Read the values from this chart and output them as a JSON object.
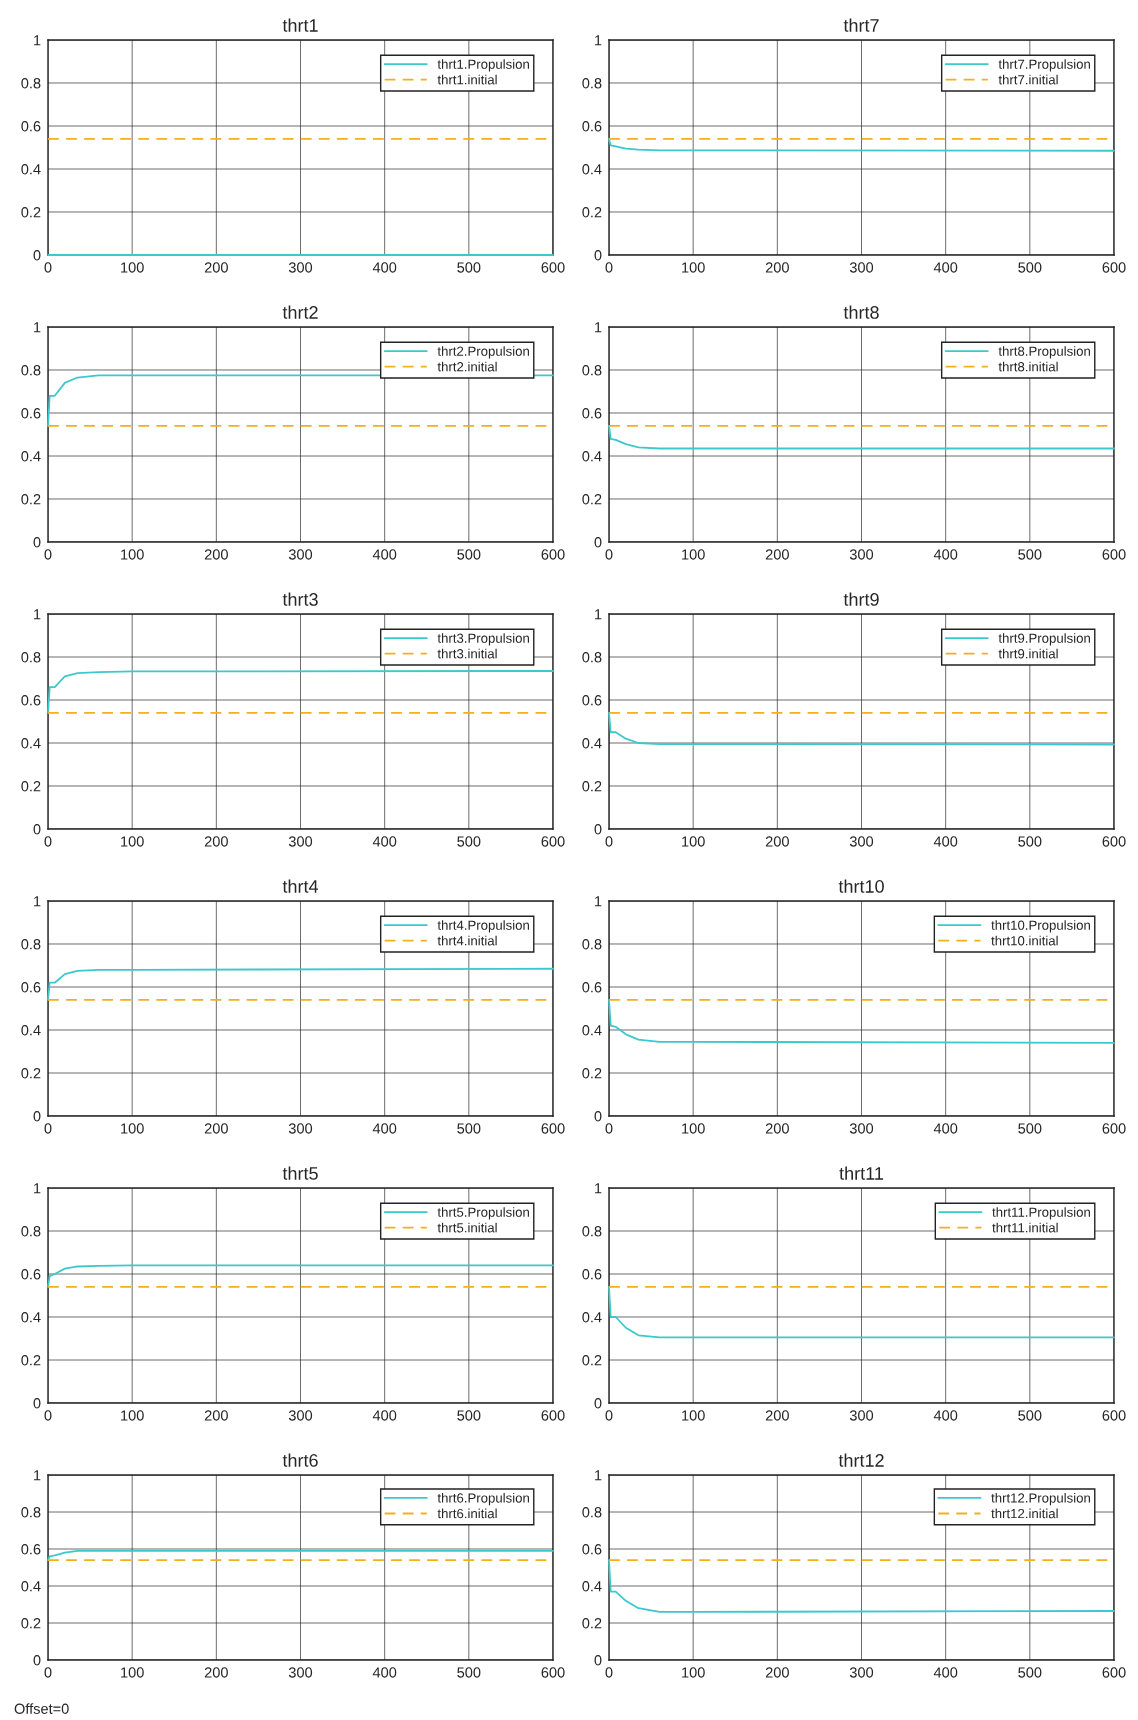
{
  "chart_data": [
    {
      "type": "line",
      "title": "thrt1",
      "xlim": [
        0,
        600
      ],
      "ylim": [
        0,
        1
      ],
      "xticks": [
        0,
        100,
        200,
        300,
        400,
        500,
        600
      ],
      "yticks": [
        0,
        0.2,
        0.4,
        0.6,
        0.8,
        1
      ],
      "grid": true,
      "legend": "top right",
      "series": [
        {
          "name": "thrt1.Propulsion",
          "color": "#3cc8cc",
          "line_style": "solid",
          "x": [
            0,
            600
          ],
          "values": [
            0,
            0
          ]
        },
        {
          "name": "thrt1.initial",
          "color": "#f2b01e",
          "line_style": "dashed",
          "x": [
            0,
            600
          ],
          "values": [
            0.54,
            0.54
          ]
        }
      ]
    },
    {
      "type": "line",
      "title": "thrt7",
      "xlim": [
        0,
        600
      ],
      "ylim": [
        0,
        1
      ],
      "xticks": [
        0,
        100,
        200,
        300,
        400,
        500,
        600
      ],
      "yticks": [
        0,
        0.2,
        0.4,
        0.6,
        0.8,
        1
      ],
      "grid": true,
      "legend": "top right",
      "series": [
        {
          "name": "thrt7.Propulsion",
          "color": "#3cc8cc",
          "line_style": "solid",
          "x": [
            0,
            2,
            8,
            20,
            35,
            60,
            100,
            600
          ],
          "values": [
            0.54,
            0.51,
            0.505,
            0.495,
            0.49,
            0.487,
            0.487,
            0.485
          ]
        },
        {
          "name": "thrt7.initial",
          "color": "#f2b01e",
          "line_style": "dashed",
          "x": [
            0,
            600
          ],
          "values": [
            0.54,
            0.54
          ]
        }
      ]
    },
    {
      "type": "line",
      "title": "thrt2",
      "xlim": [
        0,
        600
      ],
      "ylim": [
        0,
        1
      ],
      "xticks": [
        0,
        100,
        200,
        300,
        400,
        500,
        600
      ],
      "yticks": [
        0,
        0.2,
        0.4,
        0.6,
        0.8,
        1
      ],
      "grid": true,
      "legend": "top right",
      "series": [
        {
          "name": "thrt2.Propulsion",
          "color": "#3cc8cc",
          "line_style": "solid",
          "x": [
            0,
            2,
            8,
            20,
            35,
            60,
            100,
            600
          ],
          "values": [
            0.54,
            0.68,
            0.68,
            0.74,
            0.765,
            0.775,
            0.775,
            0.775
          ]
        },
        {
          "name": "thrt2.initial",
          "color": "#f2b01e",
          "line_style": "dashed",
          "x": [
            0,
            600
          ],
          "values": [
            0.54,
            0.54
          ]
        }
      ]
    },
    {
      "type": "line",
      "title": "thrt8",
      "xlim": [
        0,
        600
      ],
      "ylim": [
        0,
        1
      ],
      "xticks": [
        0,
        100,
        200,
        300,
        400,
        500,
        600
      ],
      "yticks": [
        0,
        0.2,
        0.4,
        0.6,
        0.8,
        1
      ],
      "grid": true,
      "legend": "top right",
      "series": [
        {
          "name": "thrt8.Propulsion",
          "color": "#3cc8cc",
          "line_style": "solid",
          "x": [
            0,
            2,
            8,
            20,
            35,
            60,
            100,
            600
          ],
          "values": [
            0.54,
            0.48,
            0.475,
            0.455,
            0.44,
            0.435,
            0.435,
            0.435
          ]
        },
        {
          "name": "thrt8.initial",
          "color": "#f2b01e",
          "line_style": "dashed",
          "x": [
            0,
            600
          ],
          "values": [
            0.54,
            0.54
          ]
        }
      ]
    },
    {
      "type": "line",
      "title": "thrt3",
      "xlim": [
        0,
        600
      ],
      "ylim": [
        0,
        1
      ],
      "xticks": [
        0,
        100,
        200,
        300,
        400,
        500,
        600
      ],
      "yticks": [
        0,
        0.2,
        0.4,
        0.6,
        0.8,
        1
      ],
      "grid": true,
      "legend": "top right",
      "series": [
        {
          "name": "thrt3.Propulsion",
          "color": "#3cc8cc",
          "line_style": "solid",
          "x": [
            0,
            2,
            8,
            20,
            35,
            60,
            100,
            600
          ],
          "values": [
            0.54,
            0.66,
            0.66,
            0.71,
            0.725,
            0.73,
            0.733,
            0.735
          ]
        },
        {
          "name": "thrt3.initial",
          "color": "#f2b01e",
          "line_style": "dashed",
          "x": [
            0,
            600
          ],
          "values": [
            0.54,
            0.54
          ]
        }
      ]
    },
    {
      "type": "line",
      "title": "thrt9",
      "xlim": [
        0,
        600
      ],
      "ylim": [
        0,
        1
      ],
      "xticks": [
        0,
        100,
        200,
        300,
        400,
        500,
        600
      ],
      "yticks": [
        0,
        0.2,
        0.4,
        0.6,
        0.8,
        1
      ],
      "grid": true,
      "legend": "top right",
      "series": [
        {
          "name": "thrt9.Propulsion",
          "color": "#3cc8cc",
          "line_style": "solid",
          "x": [
            0,
            2,
            8,
            20,
            35,
            60,
            100,
            600
          ],
          "values": [
            0.54,
            0.45,
            0.45,
            0.42,
            0.4,
            0.395,
            0.395,
            0.393
          ]
        },
        {
          "name": "thrt9.initial",
          "color": "#f2b01e",
          "line_style": "dashed",
          "x": [
            0,
            600
          ],
          "values": [
            0.54,
            0.54
          ]
        }
      ]
    },
    {
      "type": "line",
      "title": "thrt4",
      "xlim": [
        0,
        600
      ],
      "ylim": [
        0,
        1
      ],
      "xticks": [
        0,
        100,
        200,
        300,
        400,
        500,
        600
      ],
      "yticks": [
        0,
        0.2,
        0.4,
        0.6,
        0.8,
        1
      ],
      "grid": true,
      "legend": "top right",
      "series": [
        {
          "name": "thrt4.Propulsion",
          "color": "#3cc8cc",
          "line_style": "solid",
          "x": [
            0,
            2,
            8,
            20,
            35,
            60,
            100,
            600
          ],
          "values": [
            0.54,
            0.62,
            0.62,
            0.66,
            0.675,
            0.68,
            0.68,
            0.685
          ]
        },
        {
          "name": "thrt4.initial",
          "color": "#f2b01e",
          "line_style": "dashed",
          "x": [
            0,
            600
          ],
          "values": [
            0.54,
            0.54
          ]
        }
      ]
    },
    {
      "type": "line",
      "title": "thrt10",
      "xlim": [
        0,
        600
      ],
      "ylim": [
        0,
        1
      ],
      "xticks": [
        0,
        100,
        200,
        300,
        400,
        500,
        600
      ],
      "yticks": [
        0,
        0.2,
        0.4,
        0.6,
        0.8,
        1
      ],
      "grid": true,
      "legend": "top right",
      "series": [
        {
          "name": "thrt10.Propulsion",
          "color": "#3cc8cc",
          "line_style": "solid",
          "x": [
            0,
            2,
            8,
            20,
            35,
            60,
            100,
            600
          ],
          "values": [
            0.54,
            0.42,
            0.415,
            0.38,
            0.355,
            0.345,
            0.345,
            0.34
          ]
        },
        {
          "name": "thrt10.initial",
          "color": "#f2b01e",
          "line_style": "dashed",
          "x": [
            0,
            600
          ],
          "values": [
            0.54,
            0.54
          ]
        }
      ]
    },
    {
      "type": "line",
      "title": "thrt5",
      "xlim": [
        0,
        600
      ],
      "ylim": [
        0,
        1
      ],
      "xticks": [
        0,
        100,
        200,
        300,
        400,
        500,
        600
      ],
      "yticks": [
        0,
        0.2,
        0.4,
        0.6,
        0.8,
        1
      ],
      "grid": true,
      "legend": "top right",
      "series": [
        {
          "name": "thrt5.Propulsion",
          "color": "#3cc8cc",
          "line_style": "solid",
          "x": [
            0,
            2,
            8,
            20,
            35,
            60,
            100,
            600
          ],
          "values": [
            0.54,
            0.59,
            0.6,
            0.625,
            0.635,
            0.638,
            0.64,
            0.64
          ]
        },
        {
          "name": "thrt5.initial",
          "color": "#f2b01e",
          "line_style": "dashed",
          "x": [
            0,
            600
          ],
          "values": [
            0.54,
            0.54
          ]
        }
      ]
    },
    {
      "type": "line",
      "title": "thrt11",
      "xlim": [
        0,
        600
      ],
      "ylim": [
        0,
        1
      ],
      "xticks": [
        0,
        100,
        200,
        300,
        400,
        500,
        600
      ],
      "yticks": [
        0,
        0.2,
        0.4,
        0.6,
        0.8,
        1
      ],
      "grid": true,
      "legend": "top right",
      "series": [
        {
          "name": "thrt11.Propulsion",
          "color": "#3cc8cc",
          "line_style": "solid",
          "x": [
            0,
            2,
            8,
            20,
            35,
            60,
            100,
            600
          ],
          "values": [
            0.54,
            0.4,
            0.4,
            0.35,
            0.315,
            0.305,
            0.305,
            0.305
          ]
        },
        {
          "name": "thrt11.initial",
          "color": "#f2b01e",
          "line_style": "dashed",
          "x": [
            0,
            600
          ],
          "values": [
            0.54,
            0.54
          ]
        }
      ]
    },
    {
      "type": "line",
      "title": "thrt6",
      "xlim": [
        0,
        600
      ],
      "ylim": [
        0,
        1
      ],
      "xticks": [
        0,
        100,
        200,
        300,
        400,
        500,
        600
      ],
      "yticks": [
        0,
        0.2,
        0.4,
        0.6,
        0.8,
        1
      ],
      "grid": true,
      "legend": "top right",
      "annotations": [
        "Offset=0"
      ],
      "series": [
        {
          "name": "thrt6.Propulsion",
          "color": "#3cc8cc",
          "line_style": "solid",
          "x": [
            0,
            2,
            8,
            20,
            35,
            60,
            100,
            600
          ],
          "values": [
            0.54,
            0.56,
            0.565,
            0.58,
            0.59,
            0.59,
            0.59,
            0.59
          ]
        },
        {
          "name": "thrt6.initial",
          "color": "#f2b01e",
          "line_style": "dashed",
          "x": [
            0,
            600
          ],
          "values": [
            0.54,
            0.54
          ]
        }
      ]
    },
    {
      "type": "line",
      "title": "thrt12",
      "xlim": [
        0,
        600
      ],
      "ylim": [
        0,
        1
      ],
      "xticks": [
        0,
        100,
        200,
        300,
        400,
        500,
        600
      ],
      "yticks": [
        0,
        0.2,
        0.4,
        0.6,
        0.8,
        1
      ],
      "grid": true,
      "legend": "top right",
      "series": [
        {
          "name": "thrt12.Propulsion",
          "color": "#3cc8cc",
          "line_style": "solid",
          "x": [
            0,
            2,
            8,
            20,
            35,
            60,
            100,
            600
          ],
          "values": [
            0.54,
            0.37,
            0.37,
            0.32,
            0.28,
            0.26,
            0.26,
            0.265
          ]
        },
        {
          "name": "thrt12.initial",
          "color": "#f2b01e",
          "line_style": "dashed",
          "x": [
            0,
            600
          ],
          "values": [
            0.54,
            0.54
          ]
        }
      ]
    }
  ]
}
